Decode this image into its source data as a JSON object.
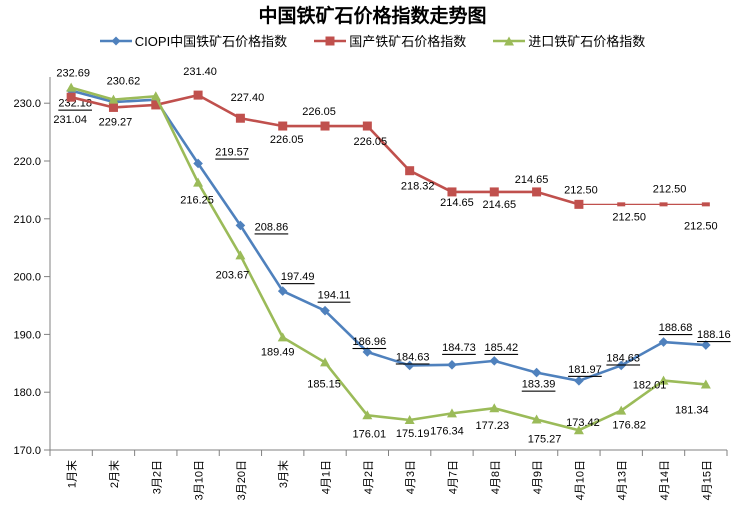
{
  "title": "中国铁矿石价格指数走势图",
  "colors": {
    "ciopi": "#4F81BD",
    "domestic": "#C0504D",
    "imported": "#9BBB59",
    "axis": "#808080",
    "label": "#000000"
  },
  "chart_data": {
    "type": "line",
    "title": "中国铁矿石价格指数走势图",
    "xlabel": "",
    "ylabel": "",
    "ylim": [
      170,
      234.5
    ],
    "grid": false,
    "legend_position": "top",
    "y_ticks": [
      "230.0",
      "220.0",
      "210.0",
      "200.0",
      "190.0",
      "180.0",
      "170.0"
    ],
    "categories": [
      "1月末",
      "2月末",
      "3月2日",
      "3月10日",
      "3月20日",
      "3月末",
      "4月1日",
      "4月2日",
      "4月3日",
      "4月7日",
      "4月8日",
      "4月9日",
      "4月10日",
      "4月13日",
      "4月14日",
      "4月15日"
    ],
    "series": [
      {
        "name": "CIOPI中国铁矿石价格指数",
        "color": "#4F81BD",
        "marker": "diamond",
        "labels_underlined": true,
        "values": [
          232.18,
          230.2,
          230.6,
          219.57,
          208.86,
          197.49,
          194.11,
          186.96,
          184.63,
          184.73,
          185.42,
          183.39,
          181.97,
          184.63,
          188.68,
          188.16
        ],
        "labels": [
          "232.18",
          null,
          null,
          "219.57",
          "208.86",
          "197.49",
          "194.11",
          "186.96",
          "184.63",
          "184.73",
          "185.42",
          "183.39",
          "181.97",
          "184.63",
          "188.68",
          "188.16"
        ]
      },
      {
        "name": "国产铁矿石价格指数",
        "color": "#C0504D",
        "marker": "square",
        "labels_underlined": false,
        "values": [
          231.04,
          229.27,
          229.7,
          231.4,
          227.4,
          226.05,
          226.05,
          226.05,
          218.32,
          214.65,
          214.65,
          214.65,
          212.5,
          212.5,
          212.5,
          212.5
        ],
        "labels": [
          "231.04",
          "229.27",
          null,
          "231.40",
          "227.40",
          "226.05",
          "226.05",
          "226.05",
          "218.32",
          "214.65",
          "214.65",
          "214.65",
          "212.50",
          "212.50",
          "212.50",
          "212.50"
        ]
      },
      {
        "name": "进口铁矿石价格指数",
        "color": "#9BBB59",
        "marker": "triangle",
        "labels_underlined": false,
        "values": [
          232.69,
          230.62,
          231.2,
          216.25,
          203.67,
          189.49,
          185.15,
          176.01,
          175.19,
          176.34,
          177.23,
          175.27,
          173.42,
          176.82,
          182.01,
          181.34
        ],
        "labels": [
          "232.69",
          "230.62",
          null,
          "216.25",
          "203.67",
          "189.49",
          "185.15",
          "176.01",
          "175.19",
          "176.34",
          "177.23",
          "175.27",
          "173.42",
          "176.82",
          "182.01",
          "181.34"
        ]
      }
    ]
  }
}
